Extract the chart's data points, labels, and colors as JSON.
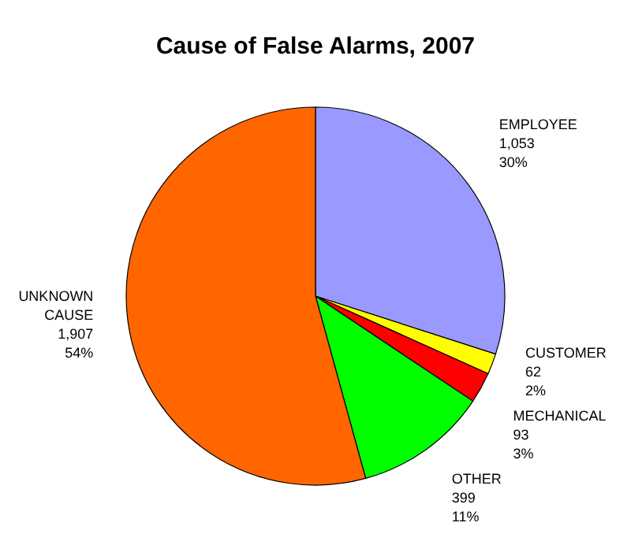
{
  "chart_data": {
    "type": "pie",
    "title": "Cause of False Alarms, 2007",
    "categories": [
      "EMPLOYEE",
      "CUSTOMER",
      "MECHANICAL",
      "OTHER",
      "UNKNOWN CAUSE"
    ],
    "values": [
      1053,
      62,
      93,
      399,
      1907
    ],
    "colors": [
      "#9999ff",
      "#ffff00",
      "#ff0000",
      "#00ff00",
      "#ff6600"
    ],
    "value_labels": [
      "1,053\n30%",
      "62\n2%",
      "93\n3%",
      "399\n11%",
      "1,907\n54%"
    ]
  }
}
